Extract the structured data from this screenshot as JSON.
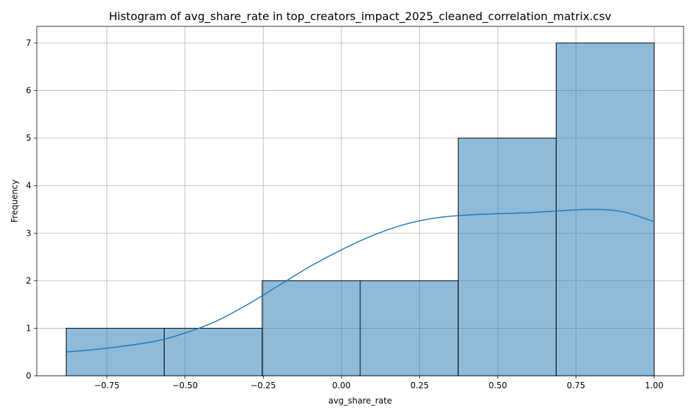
{
  "chart_data": {
    "type": "bar",
    "title": "Histogram of avg_share_rate in top_creators_impact_2025_cleaned_correlation_matrix.csv",
    "xlabel": "avg_share_rate",
    "ylabel": "Frequency",
    "bin_edges": [
      -0.88,
      -0.566667,
      -0.253333,
      0.06,
      0.373333,
      0.686667,
      1.0
    ],
    "values": [
      1,
      1,
      2,
      2,
      5,
      7
    ],
    "xlim": [
      -0.974,
      1.094
    ],
    "ylim": [
      0,
      7.35
    ],
    "xticks": [
      -0.75,
      -0.5,
      -0.25,
      0.0,
      0.25,
      0.5,
      0.75,
      1.0
    ],
    "xtick_labels": [
      "−0.75",
      "−0.50",
      "−0.25",
      "0.00",
      "0.25",
      "0.50",
      "0.75",
      "1.00"
    ],
    "yticks": [
      0,
      1,
      2,
      3,
      4,
      5,
      6,
      7
    ],
    "ytick_labels": [
      "0",
      "1",
      "2",
      "3",
      "4",
      "5",
      "6",
      "7"
    ],
    "grid": true,
    "kde": {
      "x": [
        -0.88,
        -0.75,
        -0.6,
        -0.5,
        -0.4,
        -0.3,
        -0.2,
        -0.1,
        0.0,
        0.1,
        0.2,
        0.3,
        0.4,
        0.5,
        0.6,
        0.7,
        0.8,
        0.9,
        1.0
      ],
      "y": [
        0.5,
        0.58,
        0.72,
        0.9,
        1.15,
        1.5,
        1.9,
        2.3,
        2.65,
        2.95,
        3.18,
        3.32,
        3.38,
        3.41,
        3.43,
        3.47,
        3.5,
        3.45,
        3.24
      ]
    }
  }
}
